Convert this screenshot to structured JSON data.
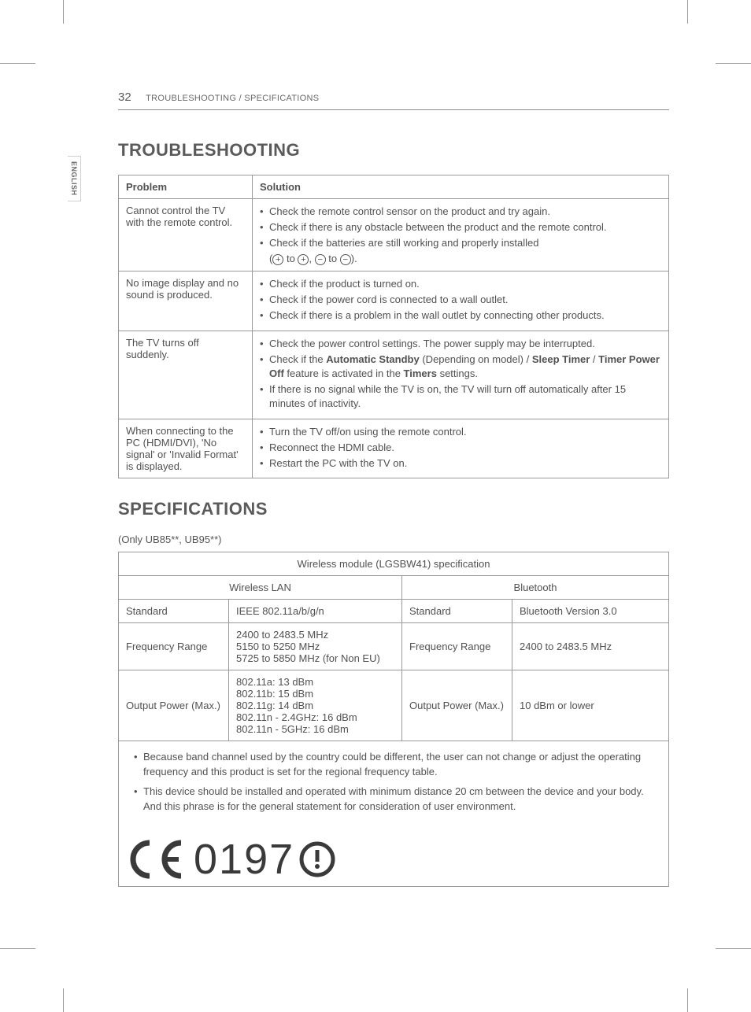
{
  "page_number": "32",
  "header": "TROUBLESHOOTING / SPECIFICATIONS",
  "side_tab": "ENGLISH",
  "troubleshooting": {
    "title": "TROUBLESHOOTING",
    "columns": {
      "problem": "Problem",
      "solution": "Solution"
    },
    "rows": [
      {
        "problem": "Cannot control the TV with the remote control.",
        "solutions": [
          "Check the remote control sensor on the product and try again.",
          "Check if there is any obstacle between the product and the remote control.",
          "Check if the batteries are still working and properly installed"
        ],
        "battery_hint_prefix": "(",
        "battery_hint_to": " to ",
        "battery_hint_sep": ", ",
        "battery_hint_suffix": ")."
      },
      {
        "problem": "No image display and no sound is produced.",
        "solutions": [
          "Check if the product is turned on.",
          "Check if the power cord is connected to a wall outlet.",
          "Check if there is a problem in the wall outlet by connecting other products."
        ]
      },
      {
        "problem": "The TV turns off suddenly.",
        "solutions": [
          "Check the power control settings. The power supply may be interrupted.",
          "__HTML__Check if the <span class=\"bold\">Automatic Standby</span> (Depending on model) / <span class=\"bold\">Sleep Timer</span> / <span class=\"bold\">Timer Power Off</span> feature is activated in the <span class=\"bold\">Timers</span> settings.",
          "If there is no signal while the TV is on, the TV will turn off automatically after 15 minutes of inactivity."
        ]
      },
      {
        "problem": "When connecting to the PC (HDMI/DVI), 'No signal' or 'Invalid Format' is displayed.",
        "solutions": [
          "Turn the TV off/on using the remote control.",
          "Reconnect the HDMI cable.",
          "Restart the PC with the TV on."
        ]
      }
    ]
  },
  "specifications": {
    "title": "SPECIFICATIONS",
    "note": "(Only UB85**, UB95**)",
    "table_title": "Wireless module (LGSBW41) specification",
    "wlan_header": "Wireless LAN",
    "bt_header": "Bluetooth",
    "wlan": {
      "standard_label": "Standard",
      "standard_value": "IEEE 802.11a/b/g/n",
      "freq_label": "Frequency Range",
      "freq_value": "2400 to 2483.5 MHz\n5150 to 5250 MHz\n5725 to 5850 MHz (for Non EU)",
      "power_label": "Output Power (Max.)",
      "power_value": "802.11a: 13 dBm\n802.11b: 15 dBm\n802.11g: 14 dBm\n802.11n - 2.4GHz: 16 dBm\n802.11n - 5GHz: 16 dBm"
    },
    "bt": {
      "standard_label": "Standard",
      "standard_value": "Bluetooth Version 3.0",
      "freq_label": "Frequency Range",
      "freq_value": "2400 to 2483.5 MHz",
      "power_label": "Output Power (Max.)",
      "power_value": "10 dBm or lower"
    },
    "footnotes": [
      "Because band channel used by the country could be different, the user can not change or adjust the operating frequency and this product is set for the regional frequency table.",
      "This device should be installed and operated with minimum distance 20 cm between the device and your body. And this phrase is for the general statement for consideration of user environment."
    ],
    "ce_number": "0197"
  }
}
